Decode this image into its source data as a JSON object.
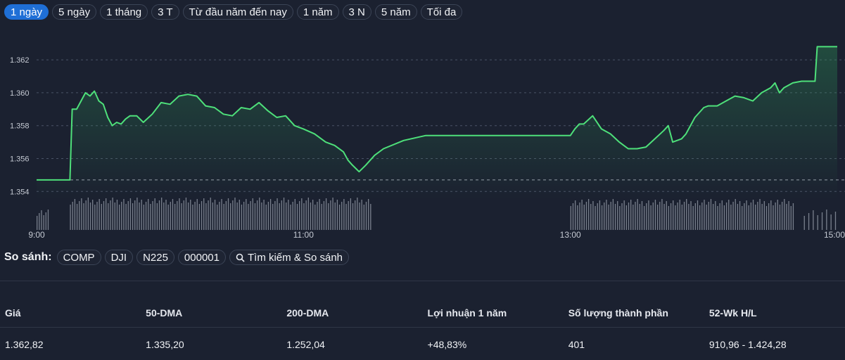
{
  "ranges": {
    "items": [
      "1 ngày",
      "5 ngày",
      "1 tháng",
      "3 T",
      "Từ đầu năm đến nay",
      "1 năm",
      "3 N",
      "5 năm",
      "Tối đa"
    ],
    "active_index": 0
  },
  "compare": {
    "label": "So sánh:",
    "symbols": [
      "COMP",
      "DJI",
      "N225",
      "000001"
    ],
    "search_label": "Tìm kiếm & So sánh"
  },
  "stats": {
    "headers": [
      "Giá",
      "50-DMA",
      "200-DMA",
      "Lợi nhuận 1 năm",
      "Số lượng thành phần",
      "52-Wk H/L"
    ],
    "values": [
      "1.362,82",
      "1.335,20",
      "1.252,04",
      "+48,83%",
      "401",
      "910,96 - 1.424,28"
    ]
  },
  "colors": {
    "line": "#4ee07a",
    "positive": "#34d66a",
    "accent": "#1f6fd6",
    "volume": "#9aa0ac"
  },
  "chart_data": {
    "type": "line",
    "x_unit": "time of day",
    "x_range": [
      "9:00",
      "15:00"
    ],
    "x_ticks": [
      "9:00",
      "11:00",
      "13:00",
      "15:00"
    ],
    "ylim": [
      1.3535,
      1.3635
    ],
    "y_ticks": [
      "1.354",
      "1.356",
      "1.358",
      "1.360",
      "1.362"
    ],
    "grid": true,
    "previous_close": 1.3547,
    "series": [
      {
        "x": [
          "9:00",
          "9:15",
          "9:16",
          "9:18",
          "9:20",
          "9:22",
          "9:24",
          "9:26",
          "9:28",
          "9:30",
          "9:32",
          "9:34",
          "9:36",
          "9:38",
          "9:40",
          "9:42",
          "9:45",
          "9:48",
          "9:52",
          "9:56",
          "10:00",
          "10:04",
          "10:08",
          "10:12",
          "10:16",
          "10:20",
          "10:24",
          "10:28",
          "10:32",
          "10:36",
          "10:40",
          "10:44",
          "10:48",
          "10:52",
          "10:56",
          "11:00",
          "11:05",
          "11:10",
          "11:14",
          "11:18",
          "11:20",
          "11:22",
          "11:25",
          "11:28",
          "11:32",
          "11:36",
          "11:45",
          "11:55",
          "12:10",
          "12:50",
          "13:00",
          "13:02",
          "13:04",
          "13:06",
          "13:10",
          "13:14",
          "13:18",
          "13:22",
          "13:26",
          "13:30",
          "13:34",
          "13:38",
          "13:42",
          "13:44",
          "13:46",
          "13:50",
          "13:52",
          "13:56",
          "14:00",
          "14:02",
          "14:06",
          "14:10",
          "14:14",
          "14:18",
          "14:22",
          "14:26",
          "14:30",
          "14:32",
          "14:34",
          "14:36",
          "14:40",
          "14:44",
          "14:48",
          "14:50",
          "14:51",
          "15:00"
        ],
        "y": [
          1.3547,
          1.3547,
          1.359,
          1.359,
          1.3595,
          1.36,
          1.3598,
          1.3601,
          1.3595,
          1.3593,
          1.3585,
          1.358,
          1.3582,
          1.3581,
          1.3584,
          1.3586,
          1.3586,
          1.3582,
          1.3587,
          1.3594,
          1.3593,
          1.3598,
          1.3599,
          1.3598,
          1.3592,
          1.3591,
          1.3587,
          1.3586,
          1.3591,
          1.359,
          1.3594,
          1.3589,
          1.3585,
          1.3586,
          1.358,
          1.3578,
          1.3575,
          1.357,
          1.3568,
          1.3564,
          1.3559,
          1.3556,
          1.3552,
          1.3556,
          1.3562,
          1.3566,
          1.3571,
          1.3574,
          1.3574,
          1.3574,
          1.3574,
          1.3578,
          1.3581,
          1.3581,
          1.3586,
          1.3578,
          1.3575,
          1.357,
          1.3566,
          1.3566,
          1.3567,
          1.3572,
          1.3577,
          1.358,
          1.357,
          1.3572,
          1.3575,
          1.3585,
          1.3591,
          1.3592,
          1.3592,
          1.3595,
          1.3598,
          1.3597,
          1.3595,
          1.36,
          1.3603,
          1.3606,
          1.36,
          1.3603,
          1.3606,
          1.3607,
          1.3607,
          1.3607,
          1.3628,
          1.3628
        ]
      }
    ]
  }
}
